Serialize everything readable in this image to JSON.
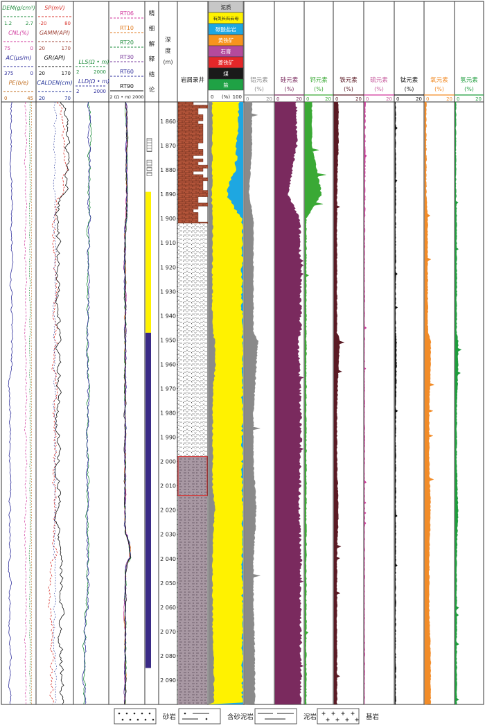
{
  "tracks": {
    "t1": {
      "curves": [
        {
          "label": "DEM(g/cm³)",
          "min": "1.2",
          "max": "2.7",
          "color": "#1e8c3c"
        },
        {
          "label": "CNL(%)",
          "min": "75",
          "max": "0",
          "color": "#d0359b"
        },
        {
          "label": "AC(μs/m)",
          "min": "375",
          "max": "0",
          "color": "#2f2f9c"
        },
        {
          "label": "PE(b/e)",
          "min": "0",
          "max": "45",
          "color": "#c06a1a"
        }
      ]
    },
    "t2": {
      "curves": [
        {
          "label": "SP(mV)",
          "min": "-20",
          "max": "80",
          "color": "#d8312a"
        },
        {
          "label": "GAMM(API)",
          "min": "20",
          "max": "170",
          "color": "#a0453a"
        },
        {
          "label": "GR(API)",
          "min": "20",
          "max": "170",
          "color": "#111111"
        },
        {
          "label": "CALDEN(cm)",
          "min": "20",
          "max": "70",
          "color": "#223399"
        }
      ]
    },
    "t3": {
      "curves": [
        {
          "label": "LLS(Ω • m)",
          "min": "2",
          "max": "2000",
          "color": "#1e8c3c"
        },
        {
          "label": "LLD(Ω • m)",
          "min": "2",
          "max": "2000",
          "color": "#2f2f9c"
        }
      ]
    },
    "t4": {
      "curves": [
        {
          "label": "RT06",
          "color": "#d0359b"
        },
        {
          "label": "RT10",
          "color": "#e07b20"
        },
        {
          "label": "RT20",
          "color": "#1e8c3c"
        },
        {
          "label": "RT30",
          "color": "#7a3c9c"
        },
        {
          "label": "RT60",
          "color": "#2f2f9c"
        },
        {
          "label": "RT90",
          "color": "#111111"
        }
      ],
      "scale": "2 (Ω • m) 2000"
    },
    "interp_header": "精细解释结论",
    "depth_header": "深度(m)",
    "lith_header": "岩屑录井",
    "mineral": {
      "legend": [
        {
          "label": "泥质",
          "color": "#c7c7c7"
        },
        {
          "label": "石英长石云母",
          "color": "#fff200"
        },
        {
          "label": "碳酸盐岩",
          "color": "#1ea7e1"
        },
        {
          "label": "黄铁矿",
          "color": "#f7941d"
        },
        {
          "label": "石膏",
          "color": "#b44a9c"
        },
        {
          "label": "菱铁矿",
          "color": "#e42729"
        },
        {
          "label": "煤",
          "color": "#1a1a1a"
        },
        {
          "label": "盐",
          "color": "#1fa245"
        }
      ],
      "scale": [
        "0",
        "(%)",
        "100"
      ]
    },
    "elements": [
      {
        "name": "铝元素",
        "unit": "(%)",
        "min": "0",
        "max": "20",
        "color": "#8a8a8a",
        "text_color": "#8a8a8a"
      },
      {
        "name": "硅元素",
        "unit": "(%)",
        "min": "0",
        "max": "20",
        "color": "#7a2a5e",
        "text_color": "#7a2a5e"
      },
      {
        "name": "钙元素",
        "unit": "(%)",
        "min": "0",
        "max": "20",
        "color": "#3aa935",
        "text_color": "#3aa935"
      },
      {
        "name": "铁元素",
        "unit": "(%)",
        "min": "0",
        "max": "20",
        "color": "#5a1a24",
        "text_color": "#5a1a24"
      },
      {
        "name": "硫元素",
        "unit": "(%)",
        "min": "0",
        "max": "20",
        "color": "#d0359b",
        "text_color": "#c65a9c"
      },
      {
        "name": "钛元素",
        "unit": "(%)",
        "min": "0",
        "max": "20",
        "color": "#111111",
        "text_color": "#111111"
      },
      {
        "name": "氧元素",
        "unit": "(%)",
        "min": "0",
        "max": "20",
        "color": "#f28c28",
        "text_color": "#f28c28"
      },
      {
        "name": "氢元素",
        "unit": "(%)",
        "min": "0",
        "max": "20",
        "color": "#1e9c3c",
        "text_color": "#1e9c3c"
      }
    ]
  },
  "depth_ticks": [
    "1 860",
    "1 870",
    "1 880",
    "1 890",
    "1 900",
    "1 910",
    "1 920",
    "1 930",
    "1 940",
    "1 950",
    "1 960",
    "1 970",
    "1 980",
    "1 990",
    "2 000",
    "2 010",
    "2 020",
    "2 030",
    "2 040",
    "2 050",
    "2 060",
    "2 070",
    "2 080",
    "2 090"
  ],
  "bottom_legend": [
    {
      "label": "砂岩",
      "pattern": "sandstone"
    },
    {
      "label": "含砂泥岩",
      "pattern": "sandy-mudstone"
    },
    {
      "label": "泥岩",
      "pattern": "mudstone"
    },
    {
      "label": "基岩",
      "pattern": "bedrock"
    }
  ],
  "chart_data": {
    "type": "line",
    "y_axis": {
      "label": "深度(m)",
      "range": [
        1852,
        2100
      ],
      "reversed": true
    },
    "lithology": [
      {
        "top": 1852,
        "base": 1902,
        "rock": "含砂泥岩",
        "color": "#b4553a"
      },
      {
        "top": 1902,
        "base": 1998,
        "rock": "泥岩",
        "color": "#ffffff"
      },
      {
        "top": 1998,
        "base": 2100,
        "rock": "含砂泥岩",
        "color": "#a898a3"
      }
    ],
    "interpretation": [
      {
        "top": 1889,
        "base": 1947,
        "color": "#fff200"
      },
      {
        "top": 1947,
        "base": 2085,
        "color": "#3a2a86"
      }
    ],
    "highlight_interval": [
      1998,
      2014
    ],
    "mineral_profile": {
      "depth": [
        1852,
        1860,
        1870,
        1880,
        1885,
        1890,
        1895,
        1900,
        1910,
        1920,
        1930,
        1940,
        1947,
        1950,
        1960,
        1965,
        1970,
        1980,
        1990,
        2000,
        2010,
        2020,
        2030,
        2040,
        2050,
        2060,
        2070,
        2080,
        2090,
        2100
      ],
      "clay": [
        10,
        12,
        10,
        11,
        10,
        9,
        10,
        12,
        12,
        11,
        11,
        11,
        12,
        18,
        20,
        17,
        13,
        12,
        12,
        12,
        12,
        18,
        13,
        12,
        11,
        12,
        12,
        14,
        16,
        16
      ],
      "quartz_feldspar_mica": [
        78,
        74,
        70,
        68,
        50,
        45,
        60,
        84,
        86,
        86,
        86,
        86,
        85,
        80,
        78,
        81,
        85,
        86,
        86,
        86,
        86,
        80,
        85,
        86,
        87,
        86,
        86,
        84,
        82,
        82
      ],
      "carbonate": [
        12,
        14,
        20,
        21,
        40,
        46,
        30,
        4,
        2,
        3,
        3,
        3,
        3,
        2,
        2,
        2,
        2,
        2,
        2,
        2,
        2,
        2,
        2,
        2,
        2,
        2,
        2,
        2,
        2,
        2
      ]
    },
    "element_curves": {
      "depth": [
        1852,
        1870,
        1890,
        1900,
        1920,
        1947,
        1950,
        1960,
        1980,
        2000,
        2020,
        2040,
        2060,
        2080,
        2100
      ],
      "铝元素": [
        5,
        5,
        3,
        6,
        6,
        6,
        9,
        8,
        6,
        6,
        8,
        6,
        6,
        7,
        7
      ],
      "硅元素": [
        15,
        15,
        9,
        17,
        18,
        18,
        16,
        17,
        18,
        18,
        17,
        18,
        18,
        18,
        18
      ],
      "钙元素": [
        5,
        5,
        12,
        1,
        1,
        1,
        1,
        1,
        1,
        1,
        1,
        1,
        1,
        1,
        1
      ],
      "铁元素": [
        3,
        3,
        2,
        2,
        2,
        2,
        4,
        3,
        2,
        2,
        3,
        2,
        2,
        2,
        2
      ],
      "硫元素": [
        0.5,
        0.5,
        0.5,
        0.2,
        0.1,
        0.1,
        0.1,
        0.1,
        0.1,
        0.1,
        0.1,
        0.1,
        0.1,
        0.1,
        0.1
      ],
      "钛元素": [
        0.5,
        0.5,
        0.5,
        0.5,
        0.5,
        0.5,
        1,
        1,
        0.5,
        0.5,
        0.5,
        0.5,
        0.5,
        0.5,
        0.5
      ],
      "氧元素": [
        1,
        1,
        1,
        2,
        2,
        2,
        4,
        4,
        3,
        3,
        4,
        3,
        3,
        4,
        4
      ],
      "氢元素": [
        0.5,
        0.5,
        0.5,
        1,
        1,
        1,
        2,
        2,
        1,
        1,
        2,
        1,
        1,
        1,
        1
      ]
    }
  }
}
